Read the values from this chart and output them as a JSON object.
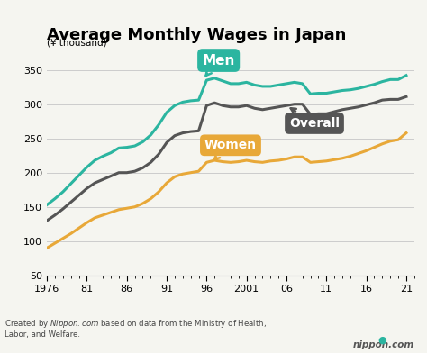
{
  "title": "Average Monthly Wages in Japan",
  "ylabel": "(¥ thousand)",
  "xlim": [
    1976,
    2022
  ],
  "ylim": [
    50,
    380
  ],
  "yticks": [
    50,
    100,
    150,
    200,
    250,
    300,
    350
  ],
  "xtick_labels": [
    "1976",
    "81",
    "86",
    "91",
    "96",
    "2001",
    "06",
    "11",
    "16",
    "21"
  ],
  "xtick_values": [
    1976,
    1981,
    1986,
    1991,
    1996,
    2001,
    2006,
    2011,
    2016,
    2021
  ],
  "men_color": "#2bb5a0",
  "overall_color": "#555555",
  "women_color": "#e8a838",
  "background": "#f5f5f0",
  "men_data": {
    "years": [
      1976,
      1977,
      1978,
      1979,
      1980,
      1981,
      1982,
      1983,
      1984,
      1985,
      1986,
      1987,
      1988,
      1989,
      1990,
      1991,
      1992,
      1993,
      1994,
      1995,
      1996,
      1997,
      1998,
      1999,
      2000,
      2001,
      2002,
      2003,
      2004,
      2005,
      2006,
      2007,
      2008,
      2009,
      2010,
      2011,
      2012,
      2013,
      2014,
      2015,
      2016,
      2017,
      2018,
      2019,
      2020,
      2021
    ],
    "values": [
      153,
      162,
      172,
      184,
      196,
      208,
      218,
      224,
      229,
      236,
      237,
      239,
      245,
      255,
      270,
      288,
      298,
      303,
      305,
      306,
      335,
      338,
      334,
      330,
      330,
      332,
      328,
      326,
      326,
      328,
      330,
      332,
      330,
      315,
      316,
      316,
      318,
      320,
      321,
      323,
      326,
      329,
      333,
      336,
      336,
      342
    ]
  },
  "overall_data": {
    "years": [
      1976,
      1977,
      1978,
      1979,
      1980,
      1981,
      1982,
      1983,
      1984,
      1985,
      1986,
      1987,
      1988,
      1989,
      1990,
      1991,
      1992,
      1993,
      1994,
      1995,
      1996,
      1997,
      1998,
      1999,
      2000,
      2001,
      2002,
      2003,
      2004,
      2005,
      2006,
      2007,
      2008,
      2009,
      2010,
      2011,
      2012,
      2013,
      2014,
      2015,
      2016,
      2017,
      2018,
      2019,
      2020,
      2021
    ],
    "values": [
      130,
      138,
      147,
      157,
      167,
      177,
      185,
      190,
      195,
      200,
      200,
      202,
      207,
      215,
      227,
      244,
      254,
      258,
      260,
      261,
      298,
      302,
      298,
      296,
      296,
      298,
      294,
      292,
      294,
      296,
      298,
      300,
      300,
      285,
      286,
      286,
      289,
      292,
      294,
      296,
      299,
      302,
      306,
      307,
      307,
      311
    ]
  },
  "women_data": {
    "years": [
      1976,
      1977,
      1978,
      1979,
      1980,
      1981,
      1982,
      1983,
      1984,
      1985,
      1986,
      1987,
      1988,
      1989,
      1990,
      1991,
      1992,
      1993,
      1994,
      1995,
      1996,
      1997,
      1998,
      1999,
      2000,
      2001,
      2002,
      2003,
      2004,
      2005,
      2006,
      2007,
      2008,
      2009,
      2010,
      2011,
      2012,
      2013,
      2014,
      2015,
      2016,
      2017,
      2018,
      2019,
      2020,
      2021
    ],
    "values": [
      90,
      97,
      104,
      111,
      119,
      127,
      134,
      138,
      142,
      146,
      148,
      150,
      155,
      162,
      172,
      185,
      194,
      198,
      200,
      202,
      215,
      218,
      216,
      215,
      216,
      218,
      216,
      215,
      217,
      218,
      220,
      223,
      223,
      215,
      216,
      217,
      219,
      221,
      224,
      228,
      232,
      237,
      242,
      246,
      248,
      258
    ]
  }
}
